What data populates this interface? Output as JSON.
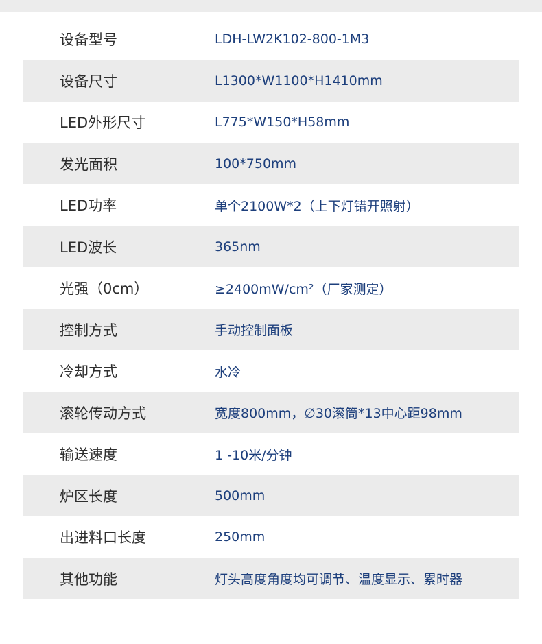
{
  "colors": {
    "label": "#2e2e2e",
    "value": "#1d3f7c",
    "stripe": "#ebebeb"
  },
  "specs": [
    {
      "label": "设备型号",
      "value": "LDH-LW2K102-800-1M3"
    },
    {
      "label": "设备尺寸",
      "value": "L1300*W1100*H1410mm"
    },
    {
      "label": "LED外形尺寸",
      "value": "L775*W150*H58mm"
    },
    {
      "label": "发光面积",
      "value": "100*750mm"
    },
    {
      "label": "LED功率",
      "value": "单个2100W*2（上下灯错开照射）"
    },
    {
      "label": "LED波长",
      "value": "365nm"
    },
    {
      "label": "光强（0cm）",
      "value": "≥2400mW/cm²（厂家测定）"
    },
    {
      "label": "控制方式",
      "value": "手动控制面板"
    },
    {
      "label": "冷却方式",
      "value": "水冷"
    },
    {
      "label": "滚轮传动方式",
      "value": "宽度800mm，∅30滚筒*13中心距98mm"
    },
    {
      "label": "输送速度",
      "value": "1 -10米/分钟"
    },
    {
      "label": "炉区长度",
      "value": "500mm"
    },
    {
      "label": "出进料口长度",
      "value": "250mm"
    },
    {
      "label": "其他功能",
      "value": "灯头高度角度均可调节、温度显示、累时器"
    }
  ]
}
